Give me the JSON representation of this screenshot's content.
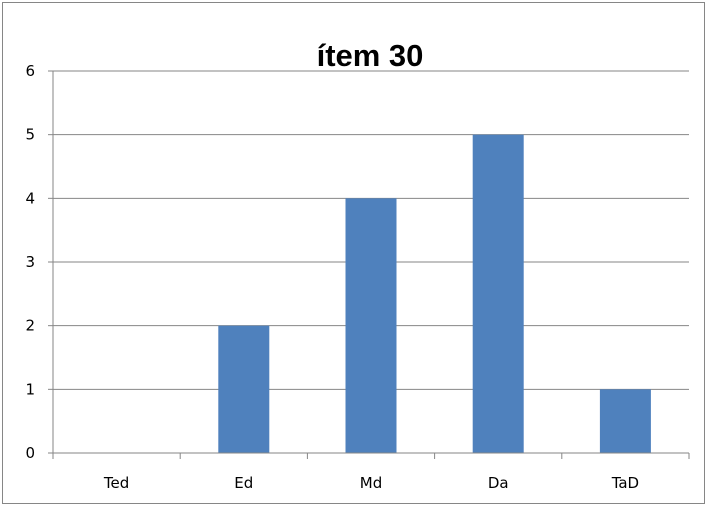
{
  "chart_data": {
    "type": "bar",
    "title": "ítem 30",
    "categories": [
      "Ted",
      "Ed",
      "Md",
      "Da",
      "TaD"
    ],
    "values": [
      0,
      2,
      4,
      5,
      1
    ],
    "ylim": [
      0,
      6
    ],
    "yticks": [
      "0",
      "1",
      "2",
      "3",
      "4",
      "5",
      "6"
    ],
    "grid": true,
    "legend": "none",
    "bar_color": "#4F81BD"
  }
}
